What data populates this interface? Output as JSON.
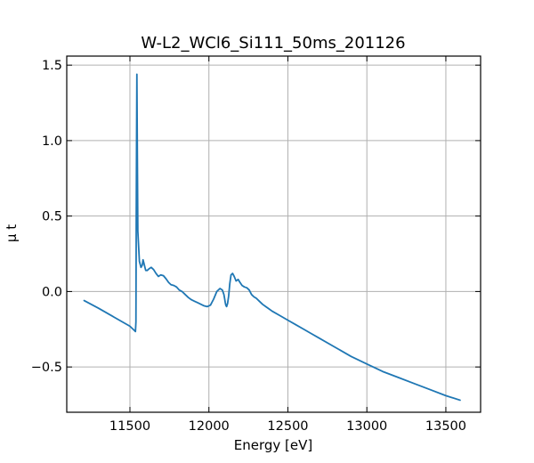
{
  "chart_data": {
    "type": "line",
    "title": "W-L2_WCl6_Si111_50ms_201126",
    "xlabel": "Energy [eV]",
    "ylabel": "μ t",
    "xlim": [
      11100,
      13720
    ],
    "ylim": [
      -0.8,
      1.56
    ],
    "xticks": [
      11500,
      12000,
      12500,
      13000,
      13500
    ],
    "yticks": [
      -0.5,
      0.0,
      0.5,
      1.0,
      1.5
    ],
    "xtick_labels": [
      "11500",
      "12000",
      "12500",
      "13000",
      "13500"
    ],
    "ytick_labels": [
      "−0.5",
      "0.0",
      "0.5",
      "1.0",
      "1.5"
    ],
    "grid": true,
    "colors": {
      "series": "#1f77b4",
      "grid": "#b0b0b0",
      "axes": "#000000"
    },
    "series": [
      {
        "color": "#1f77b4",
        "x": [
          11210,
          11300,
          11400,
          11500,
          11525,
          11535,
          11538,
          11540,
          11542,
          11544,
          11547,
          11550,
          11555,
          11560,
          11570,
          11578,
          11583,
          11588,
          11595,
          11600,
          11610,
          11620,
          11635,
          11650,
          11665,
          11680,
          11695,
          11712,
          11728,
          11745,
          11760,
          11778,
          11795,
          11812,
          11830,
          11850,
          11870,
          11890,
          11910,
          11930,
          11950,
          11970,
          11990,
          12010,
          12030,
          12050,
          12070,
          12085,
          12095,
          12100,
          12103,
          12107,
          12112,
          12118,
          12125,
          12132,
          12140,
          12150,
          12160,
          12172,
          12185,
          12197,
          12210,
          12225,
          12240,
          12255,
          12270,
          12285,
          12300,
          12320,
          12340,
          12360,
          12380,
          12400,
          12450,
          12500,
          12550,
          12600,
          12650,
          12700,
          12800,
          12900,
          13000,
          13100,
          13200,
          13300,
          13400,
          13500,
          13590
        ],
        "y": [
          -0.06,
          -0.11,
          -0.17,
          -0.23,
          -0.255,
          -0.265,
          -0.2,
          0.5,
          1.0,
          1.44,
          0.9,
          0.4,
          0.3,
          0.2,
          0.16,
          0.175,
          0.21,
          0.19,
          0.16,
          0.14,
          0.14,
          0.15,
          0.16,
          0.145,
          0.12,
          0.1,
          0.11,
          0.105,
          0.085,
          0.06,
          0.045,
          0.04,
          0.03,
          0.01,
          0.0,
          -0.02,
          -0.04,
          -0.055,
          -0.065,
          -0.075,
          -0.085,
          -0.095,
          -0.1,
          -0.09,
          -0.05,
          0.0,
          0.02,
          0.01,
          -0.02,
          -0.05,
          -0.07,
          -0.09,
          -0.1,
          -0.08,
          -0.03,
          0.05,
          0.11,
          0.12,
          0.1,
          0.07,
          0.08,
          0.06,
          0.04,
          0.03,
          0.025,
          0.01,
          -0.02,
          -0.035,
          -0.045,
          -0.065,
          -0.085,
          -0.1,
          -0.115,
          -0.13,
          -0.16,
          -0.19,
          -0.22,
          -0.25,
          -0.28,
          -0.31,
          -0.37,
          -0.43,
          -0.48,
          -0.53,
          -0.57,
          -0.61,
          -0.65,
          -0.69,
          -0.72
        ]
      }
    ]
  }
}
